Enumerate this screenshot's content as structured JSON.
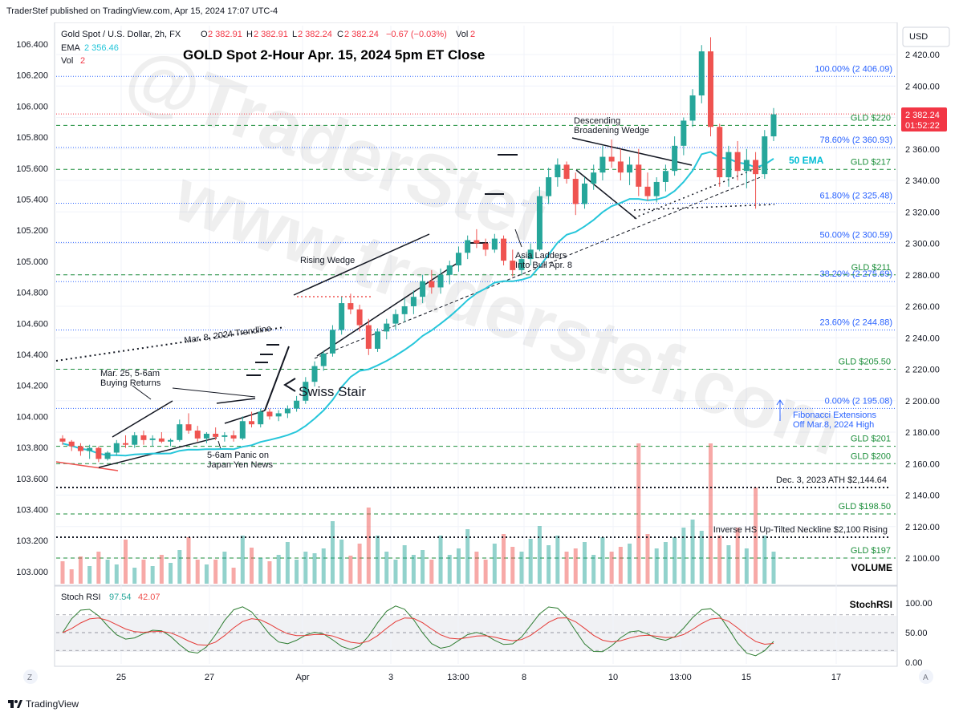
{
  "header": {
    "published": "TraderStef published on TradingView.com, Apr 15, 2024 17:07 UTC-4",
    "instrument": "Gold Spot / U.S. Dollar, 2h, FX",
    "ohlc": {
      "o": "2 382.91",
      "h": "2 382.91",
      "l": "2 382.24",
      "c": "2 382.24",
      "chg": "−0.67 (−0.03%)"
    },
    "vol_label": "Vol",
    "vol_value": "2",
    "ema_label": "EMA",
    "ema_value": "2 356.46",
    "vol2_label": "Vol",
    "vol2_value": "2",
    "title": "GOLD Spot 2-Hour Apr. 15, 2024 5pm ET Close"
  },
  "currency": "USD",
  "price_badge": {
    "price": "2 382.24",
    "countdown": "01:52:22",
    "color": "#f23645"
  },
  "colors": {
    "up": "#26a69a",
    "down": "#ef5350",
    "ema": "#26c6da",
    "fib": "#2962ff",
    "gld": "#1b8e3a",
    "ema_label": "#00bcd4"
  },
  "chart_data": [
    {
      "type": "candlestick",
      "ylim_right": [
        2090,
        2440
      ],
      "y_ticks_right": [
        "2 420.00",
        "2 400.00",
        "2 380.00",
        "2 360.00",
        "2 340.00",
        "2 320.00",
        "2 300.00",
        "2 280.00",
        "2 260.00",
        "2 240.00",
        "2 220.00",
        "2 200.00",
        "2 180.00",
        "2 160.00",
        "2 140.00",
        "2 120.00",
        "2 100.00"
      ],
      "y_ticks_left": [
        "106.400",
        "106.200",
        "106.000",
        "105.800",
        "105.600",
        "105.400",
        "105.200",
        "105.000",
        "104.800",
        "104.600",
        "104.400",
        "104.200",
        "104.000",
        "103.800",
        "103.600",
        "103.400",
        "103.200",
        "103.000"
      ],
      "x_ticks": [
        "25",
        "27",
        "Apr",
        "3",
        "13:00",
        "8",
        "10",
        "13:00",
        "15",
        "17"
      ],
      "candles": [
        [
          2176,
          2178,
          2172,
          2174
        ],
        [
          2174,
          2175,
          2168,
          2171
        ],
        [
          2171,
          2173,
          2165,
          2168
        ],
        [
          2168,
          2172,
          2163,
          2170
        ],
        [
          2170,
          2171,
          2161,
          2163
        ],
        [
          2163,
          2168,
          2162,
          2167
        ],
        [
          2167,
          2175,
          2165,
          2173
        ],
        [
          2173,
          2178,
          2170,
          2172
        ],
        [
          2172,
          2180,
          2170,
          2178
        ],
        [
          2178,
          2181,
          2172,
          2175
        ],
        [
          2175,
          2178,
          2171,
          2176
        ],
        [
          2176,
          2180,
          2173,
          2174
        ],
        [
          2174,
          2176,
          2171,
          2175
        ],
        [
          2175,
          2188,
          2174,
          2185
        ],
        [
          2185,
          2192,
          2179,
          2181
        ],
        [
          2181,
          2184,
          2174,
          2176
        ],
        [
          2176,
          2180,
          2173,
          2179
        ],
        [
          2179,
          2183,
          2175,
          2177
        ],
        [
          2177,
          2180,
          2174,
          2178
        ],
        [
          2178,
          2181,
          2174,
          2176
        ],
        [
          2176,
          2190,
          2175,
          2187
        ],
        [
          2187,
          2193,
          2183,
          2185
        ],
        [
          2185,
          2195,
          2183,
          2193
        ],
        [
          2193,
          2195,
          2188,
          2190
        ],
        [
          2190,
          2194,
          2187,
          2192
        ],
        [
          2192,
          2197,
          2189,
          2195
        ],
        [
          2195,
          2203,
          2193,
          2200
        ],
        [
          2200,
          2215,
          2198,
          2212
        ],
        [
          2212,
          2225,
          2209,
          2222
        ],
        [
          2222,
          2232,
          2219,
          2230
        ],
        [
          2230,
          2248,
          2228,
          2245
        ],
        [
          2245,
          2266,
          2242,
          2262
        ],
        [
          2262,
          2268,
          2255,
          2258
        ],
        [
          2258,
          2261,
          2244,
          2248
        ],
        [
          2248,
          2252,
          2229,
          2233
        ],
        [
          2233,
          2246,
          2231,
          2244
        ],
        [
          2244,
          2252,
          2239,
          2249
        ],
        [
          2249,
          2258,
          2245,
          2255
        ],
        [
          2255,
          2265,
          2250,
          2260
        ],
        [
          2260,
          2270,
          2255,
          2266
        ],
        [
          2266,
          2280,
          2262,
          2276
        ],
        [
          2276,
          2283,
          2268,
          2272
        ],
        [
          2272,
          2284,
          2268,
          2280
        ],
        [
          2280,
          2289,
          2274,
          2286
        ],
        [
          2286,
          2298,
          2282,
          2294
        ],
        [
          2294,
          2305,
          2290,
          2302
        ],
        [
          2302,
          2309,
          2297,
          2300
        ],
        [
          2300,
          2303,
          2292,
          2296
        ],
        [
          2296,
          2306,
          2294,
          2303
        ],
        [
          2303,
          2305,
          2286,
          2289
        ],
        [
          2289,
          2296,
          2279,
          2283
        ],
        [
          2283,
          2292,
          2280,
          2290
        ],
        [
          2290,
          2300,
          2286,
          2296
        ],
        [
          2296,
          2336,
          2295,
          2330
        ],
        [
          2330,
          2348,
          2325,
          2342
        ],
        [
          2342,
          2354,
          2336,
          2350
        ],
        [
          2350,
          2352,
          2338,
          2341
        ],
        [
          2341,
          2345,
          2318,
          2325
        ],
        [
          2325,
          2342,
          2322,
          2338
        ],
        [
          2338,
          2350,
          2334,
          2345
        ],
        [
          2345,
          2362,
          2340,
          2355
        ],
        [
          2355,
          2366,
          2348,
          2352
        ],
        [
          2352,
          2360,
          2340,
          2345
        ],
        [
          2345,
          2355,
          2337,
          2350
        ],
        [
          2350,
          2360,
          2330,
          2336
        ],
        [
          2336,
          2345,
          2327,
          2330
        ],
        [
          2330,
          2342,
          2326,
          2339
        ],
        [
          2339,
          2350,
          2333,
          2346
        ],
        [
          2346,
          2368,
          2343,
          2362
        ],
        [
          2362,
          2380,
          2356,
          2378
        ],
        [
          2378,
          2398,
          2374,
          2394
        ],
        [
          2394,
          2426,
          2389,
          2422
        ],
        [
          2422,
          2431,
          2368,
          2374
        ],
        [
          2374,
          2376,
          2336,
          2342
        ],
        [
          2342,
          2362,
          2336,
          2358
        ],
        [
          2358,
          2365,
          2340,
          2346
        ],
        [
          2346,
          2360,
          2335,
          2353
        ],
        [
          2353,
          2358,
          2322,
          2344
        ],
        [
          2344,
          2372,
          2341,
          2368
        ],
        [
          2368,
          2386,
          2365,
          2382
        ]
      ],
      "ema_label": "50 EMA"
    },
    {
      "type": "bar",
      "name": "Volume",
      "label": "VOLUME"
    },
    {
      "type": "line",
      "name": "Stoch RSI",
      "values_display": {
        "k": "97.54",
        "d": "42.07"
      },
      "label": "StochRSI",
      "ylim": [
        0,
        100
      ],
      "y_ticks": [
        "100.00",
        "50.00",
        "0.00"
      ]
    }
  ],
  "annotations": {
    "watermark1": "@TraderStef",
    "watermark2": "www.traderstef.com",
    "fib_levels": [
      {
        "label": "100.00% (2 406.09)",
        "price": 2406.09
      },
      {
        "label": "78.60% (2 360.93)",
        "price": 2360.93
      },
      {
        "label": "61.80% (2 325.48)",
        "price": 2325.48
      },
      {
        "label": "50.00% (2 300.59)",
        "price": 2300.59
      },
      {
        "label": "38.20% (2 275.69)",
        "price": 2275.69
      },
      {
        "label": "23.60% (2 244.88)",
        "price": 2244.88
      },
      {
        "label": "0.00% (2 195.08)",
        "price": 2195.08
      }
    ],
    "gld_levels": [
      {
        "label": "GLD $220",
        "price": 2375
      },
      {
        "label": "GLD $217",
        "price": 2347
      },
      {
        "label": "GLD $211",
        "price": 2280
      },
      {
        "label": "GLD $205.50",
        "price": 2220
      },
      {
        "label": "GLD $201",
        "price": 2171
      },
      {
        "label": "GLD $200",
        "price": 2160
      },
      {
        "label": "GLD $198.50",
        "price": 2128
      },
      {
        "label": "GLD $197",
        "price": 2100
      }
    ],
    "fib_note": [
      "Fibonacci Extensions",
      "Off Mar.8, 2024 High"
    ],
    "ath": "Dec. 3, 2023 ATH $2,144.64",
    "neckline": "Inverse HS Up-Tilted Neckline $2,100 Rising",
    "desc_wedge": [
      "Descending",
      "Broadening Wedge"
    ],
    "rising_wedge": "Rising Wedge",
    "asia": [
      "Asia Ladders",
      "Into Bull Apr. 8"
    ],
    "trendline": "Mar. 8, 2024 Trendline",
    "swiss": "Swiss Stair",
    "buying": [
      "Mar. 25, 5-6am",
      "Buying Returns"
    ],
    "panic": [
      "5-6am Panic on",
      "Japan Yen News"
    ]
  },
  "footer": {
    "brand": "TradingView"
  }
}
